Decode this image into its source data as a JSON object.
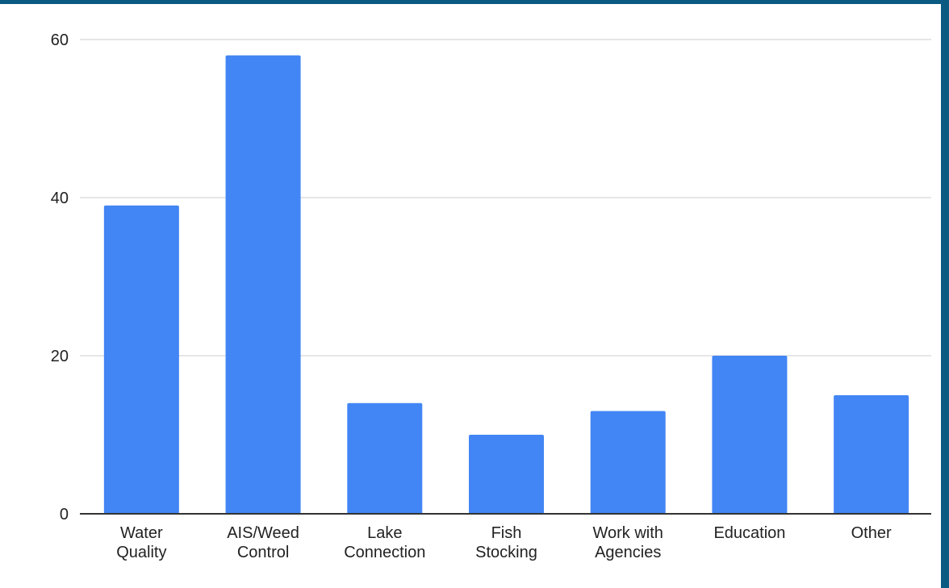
{
  "chart_data": {
    "type": "bar",
    "categories": [
      [
        "Water",
        "Quality"
      ],
      [
        "AIS/Weed",
        "Control"
      ],
      [
        "Lake",
        "Connection"
      ],
      [
        "Fish",
        "Stocking"
      ],
      [
        "Work with",
        "Agencies"
      ],
      [
        "Education"
      ],
      [
        "Other"
      ]
    ],
    "values": [
      39,
      58,
      14,
      10,
      13,
      20,
      15
    ],
    "title": "",
    "xlabel": "",
    "ylabel": "",
    "ylim": [
      0,
      60
    ],
    "yticks": [
      "0",
      "20",
      "40",
      "60"
    ],
    "grid": true,
    "legend": "none",
    "bar_color": "#4285f4",
    "axis_color": "#333333",
    "grid_color": "#cccccc"
  }
}
